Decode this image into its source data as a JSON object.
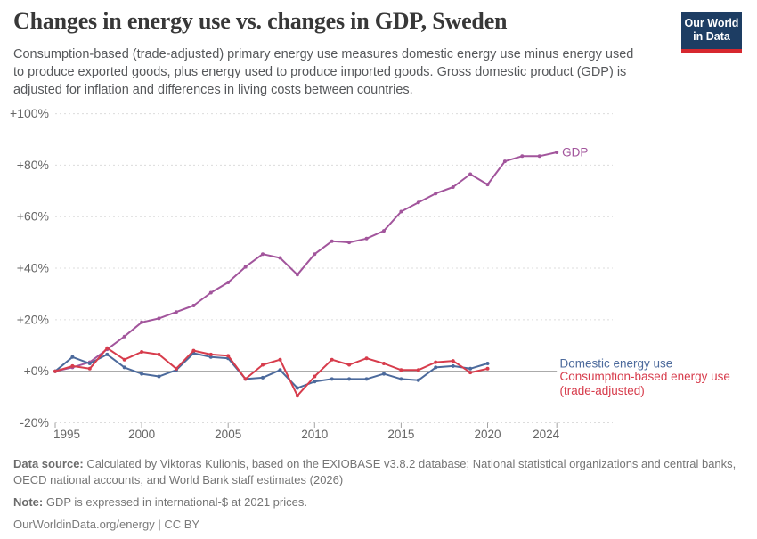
{
  "header": {
    "title": "Changes in energy use vs. changes in GDP, Sweden",
    "subtitle": "Consumption-based (trade-adjusted) primary energy use measures domestic energy use minus energy used to produce exported goods, plus energy used to produce imported goods. Gross domestic product (GDP) is adjusted for inflation and differences in living costs between countries.",
    "logo": {
      "line1": "Our World",
      "line2": "in Data",
      "bg_color": "#1d3d63",
      "bar_color": "#d7282f"
    }
  },
  "chart_data": {
    "type": "line",
    "title": "Changes in energy use vs. changes in GDP, Sweden",
    "ylabel": "",
    "xlabel": "",
    "ylim": [
      -20,
      100
    ],
    "xlim": [
      1995,
      2024
    ],
    "grid": "horizontal-dashed",
    "legend_position": "right-end-labels",
    "x": [
      1995,
      1996,
      1997,
      1998,
      1999,
      2000,
      2001,
      2002,
      2003,
      2004,
      2005,
      2006,
      2007,
      2008,
      2009,
      2010,
      2011,
      2012,
      2013,
      2014,
      2015,
      2016,
      2017,
      2018,
      2019,
      2020,
      2021,
      2022,
      2023,
      2024
    ],
    "series": [
      {
        "id": "gdp",
        "name": "GDP",
        "end_label": [
          "GDP"
        ],
        "color": "#a2559c",
        "values": [
          0,
          1.5,
          3.5,
          8.5,
          13.5,
          19,
          20.5,
          23,
          25.5,
          30.5,
          34.5,
          40.5,
          45.5,
          44,
          37.5,
          45.5,
          50.5,
          50,
          51.5,
          54.5,
          62,
          65.5,
          69,
          71.5,
          76.5,
          72.5,
          81.5,
          83.5,
          83.5,
          85
        ]
      },
      {
        "id": "domestic-energy-use",
        "name": "Domestic energy use",
        "end_label": [
          "Domestic energy use"
        ],
        "color": "#4c6a9c",
        "values": [
          0,
          5.5,
          3,
          6.5,
          1.5,
          -1,
          -2,
          0.5,
          7,
          5.5,
          5,
          -3,
          -2.5,
          0.5,
          -6.5,
          -4,
          -3,
          -3,
          -3,
          -1,
          -3,
          -3.5,
          1.5,
          2,
          1,
          3
        ]
      },
      {
        "id": "consumption-based-energy-use",
        "name": "Consumption-based energy use (trade-adjusted)",
        "end_label": [
          "Consumption-based energy use",
          "(trade-adjusted)"
        ],
        "color": "#d73c4c",
        "values": [
          0,
          2,
          1,
          9,
          4.5,
          7.5,
          6.5,
          1,
          8,
          6.5,
          6,
          -3,
          2.5,
          4.5,
          -9.5,
          -2,
          4.5,
          2.5,
          5,
          3,
          0.5,
          0.5,
          3.5,
          4,
          -0.5,
          1
        ]
      }
    ],
    "yticks": [
      {
        "value": 100,
        "label": "+100%"
      },
      {
        "value": 80,
        "label": "+80%"
      },
      {
        "value": 60,
        "label": "+60%"
      },
      {
        "value": 40,
        "label": "+40%"
      },
      {
        "value": 20,
        "label": "+20%"
      },
      {
        "value": 0,
        "label": "+0%"
      },
      {
        "value": -20,
        "label": "-20%"
      }
    ],
    "xticks": [
      {
        "year": 1995,
        "label": "1995"
      },
      {
        "year": 2000,
        "label": "2000"
      },
      {
        "year": 2005,
        "label": "2005"
      },
      {
        "year": 2010,
        "label": "2010"
      },
      {
        "year": 2015,
        "label": "2015"
      },
      {
        "year": 2020,
        "label": "2020"
      },
      {
        "year": 2024,
        "label": "2024"
      }
    ]
  },
  "footer": {
    "datasource_label": "Data source:",
    "datasource_text": " Calculated by Viktoras Kulionis, based on the EXIOBASE v3.8.2 database; National statistical organizations and central banks, OECD national accounts, and World Bank staff estimates (2026)",
    "note_label": "Note:",
    "note_text": " GDP is expressed in international-$ at 2021 prices.",
    "url": "OurWorldinData.org/energy",
    "separator": " | ",
    "license": "CC BY"
  }
}
